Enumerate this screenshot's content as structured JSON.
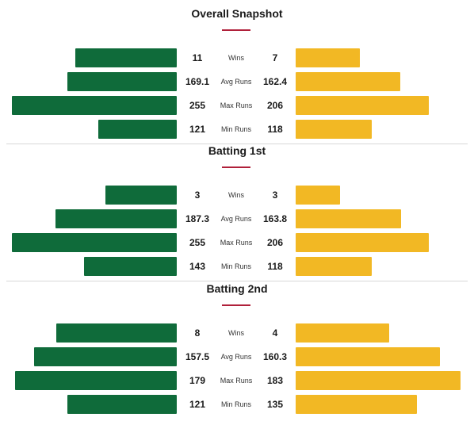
{
  "colors": {
    "team_a": "#0f6b3a",
    "team_b": "#f2b824",
    "accent": "#b0203a"
  },
  "sections": [
    {
      "title": "Overall Snapshot",
      "rows": [
        {
          "label": "Wins",
          "left": "11",
          "right": "7"
        },
        {
          "label": "Avg Runs",
          "left": "169.1",
          "right": "162.4"
        },
        {
          "label": "Max Runs",
          "left": "255",
          "right": "206"
        },
        {
          "label": "Min Runs",
          "left": "121",
          "right": "118"
        }
      ]
    },
    {
      "title": "Batting 1st",
      "rows": [
        {
          "label": "Wins",
          "left": "3",
          "right": "3"
        },
        {
          "label": "Avg Runs",
          "left": "187.3",
          "right": "163.8"
        },
        {
          "label": "Max Runs",
          "left": "255",
          "right": "206"
        },
        {
          "label": "Min Runs",
          "left": "143",
          "right": "118"
        }
      ]
    },
    {
      "title": "Batting 2nd",
      "rows": [
        {
          "label": "Wins",
          "left": "8",
          "right": "4"
        },
        {
          "label": "Avg Runs",
          "left": "157.5",
          "right": "160.3"
        },
        {
          "label": "Max Runs",
          "left": "179",
          "right": "183"
        },
        {
          "label": "Min Runs",
          "left": "121",
          "right": "135"
        }
      ]
    }
  ]
}
